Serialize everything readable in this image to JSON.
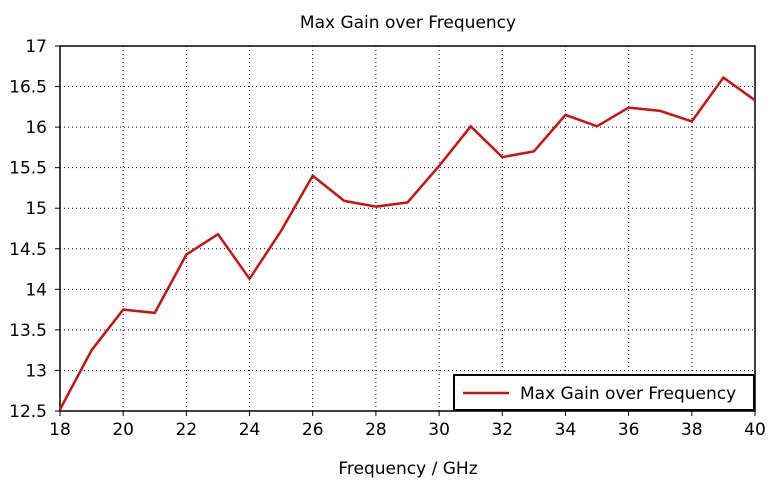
{
  "chart_data": {
    "type": "line",
    "title": "Max Gain over Frequency",
    "xlabel": "Frequency / GHz",
    "ylabel": "",
    "xlim": [
      18,
      40
    ],
    "ylim": [
      12.5,
      17
    ],
    "x_ticks": [
      18,
      20,
      22,
      24,
      26,
      28,
      30,
      32,
      34,
      36,
      38,
      40
    ],
    "y_ticks": [
      12.5,
      13,
      13.5,
      14,
      14.5,
      15,
      15.5,
      16,
      16.5,
      17
    ],
    "x_tick_labels": [
      "18",
      "20",
      "22",
      "24",
      "26",
      "28",
      "30",
      "32",
      "34",
      "36",
      "38",
      "40"
    ],
    "y_tick_labels": [
      "12.5",
      "13",
      "13.5",
      "14",
      "14.5",
      "15",
      "15.5",
      "16",
      "16.5",
      "17"
    ],
    "grid": true,
    "grid_style": "dotted",
    "legend_position": "bottom-right",
    "series": [
      {
        "name": "Max Gain over Frequency",
        "color": "#cc1111",
        "x": [
          18,
          19,
          20,
          21,
          22,
          23,
          24,
          25,
          26,
          27,
          28,
          29,
          30,
          31,
          32,
          33,
          34,
          35,
          36,
          37,
          38,
          39,
          40
        ],
        "y": [
          12.52,
          13.25,
          13.75,
          13.71,
          14.43,
          14.68,
          14.13,
          14.72,
          15.4,
          15.09,
          15.02,
          15.07,
          15.52,
          16.01,
          15.63,
          15.7,
          16.15,
          16.01,
          16.24,
          16.2,
          16.07,
          16.61,
          16.33
        ]
      }
    ]
  }
}
